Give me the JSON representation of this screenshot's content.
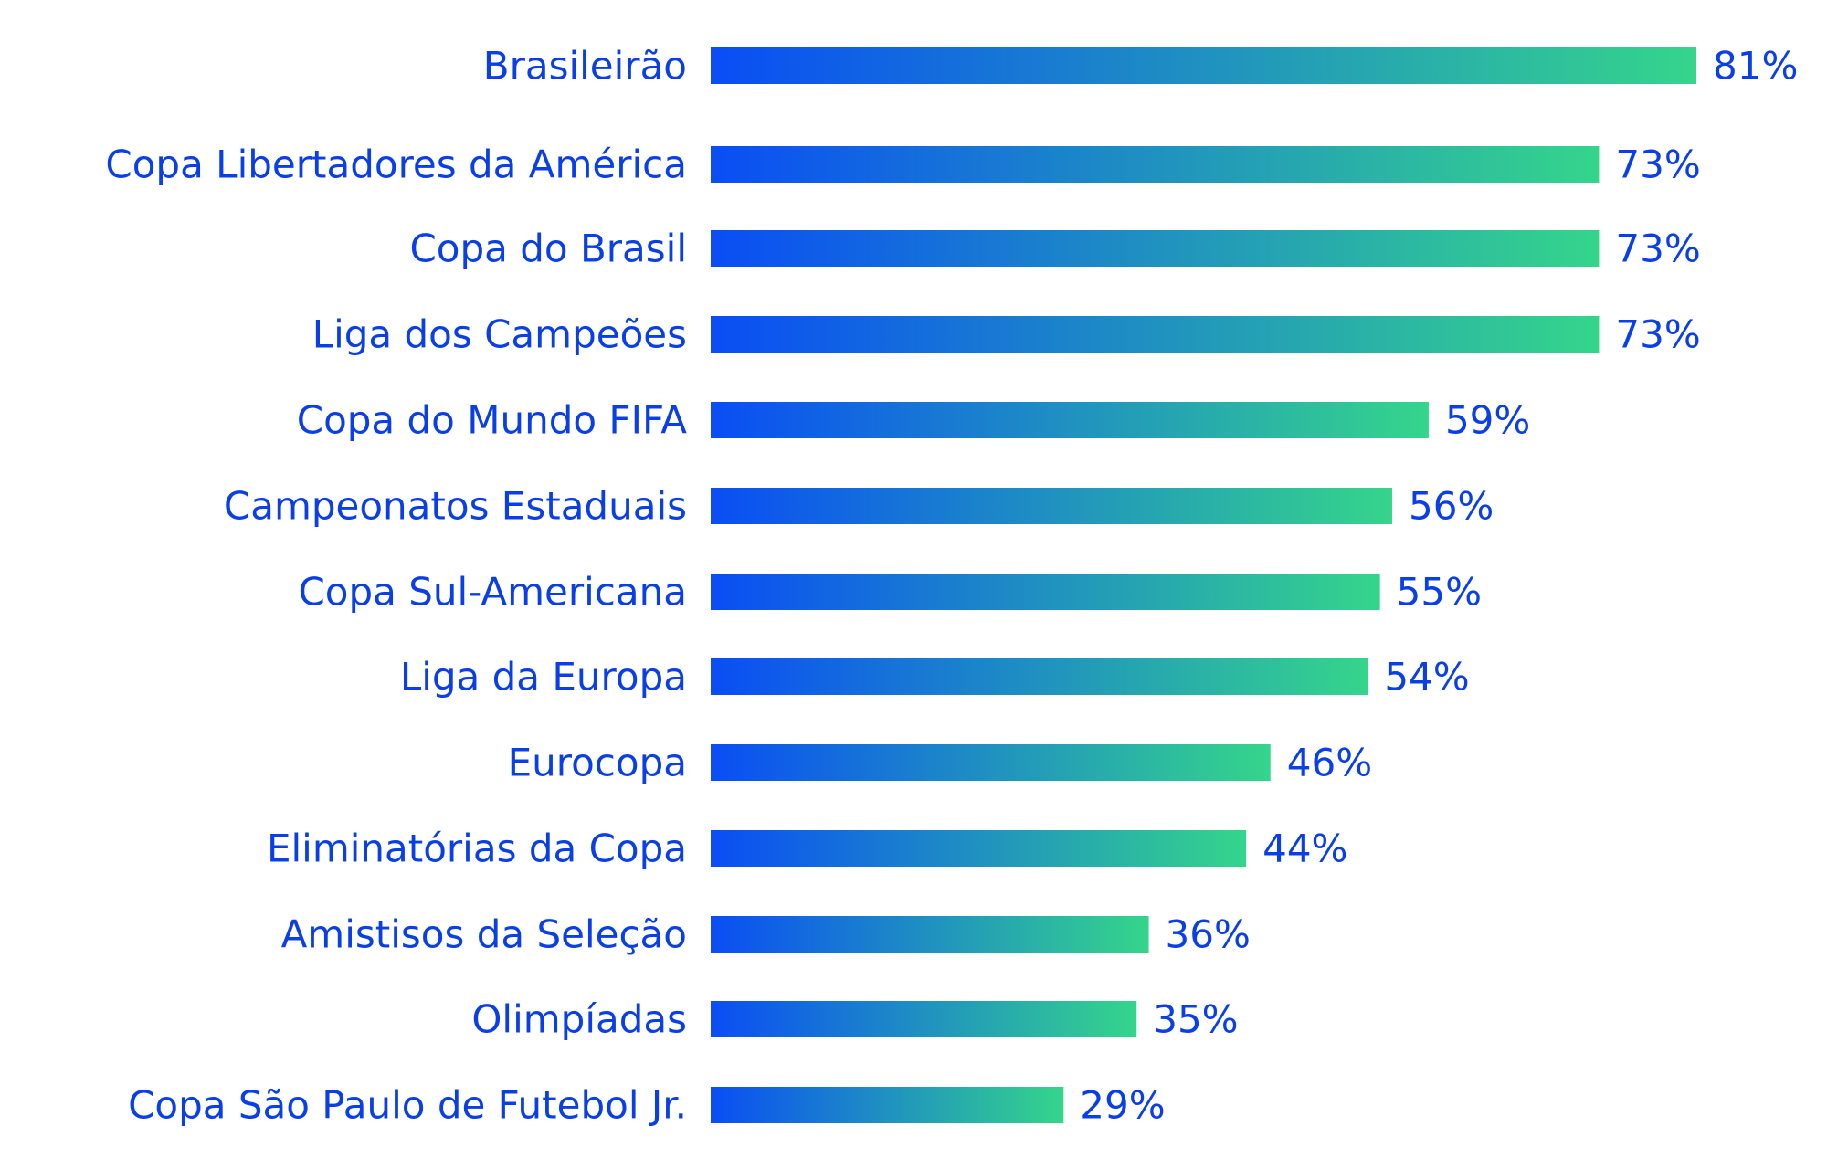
{
  "colors": {
    "text": "#0a3fe8",
    "bar_start": "#0a4df5",
    "bar_end": "#35d58b",
    "background": "#ffffff"
  },
  "chart_data": {
    "type": "bar",
    "orientation": "horizontal",
    "categories": [
      "Brasileirão",
      "Copa Libertadores da América",
      "Copa do Brasil",
      "Liga dos Campeões",
      "Copa do Mundo FIFA",
      "Campeonatos Estaduais",
      "Copa Sul-Americana",
      "Liga da Europa",
      "Eurocopa",
      "Eliminatórias da Copa",
      "Amistisos da Seleção",
      "Olimpíadas",
      "Copa São Paulo de Futebol Jr."
    ],
    "values": [
      81,
      73,
      73,
      73,
      59,
      56,
      55,
      54,
      46,
      44,
      36,
      35,
      29
    ],
    "value_labels": [
      "81%",
      "73%",
      "73%",
      "73%",
      "59%",
      "56%",
      "55%",
      "54%",
      "46%",
      "44%",
      "36%",
      "35%",
      "29%"
    ],
    "unit": "%",
    "title": "",
    "xlabel": "",
    "ylabel": "",
    "grid": false,
    "legend": "none"
  }
}
